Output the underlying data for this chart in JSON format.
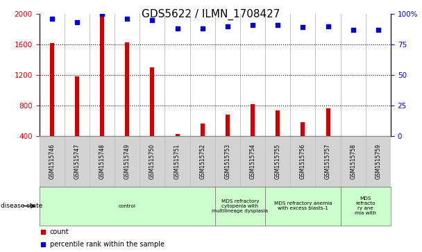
{
  "title": "GDS5622 / ILMN_1708427",
  "samples": [
    "GSM1515746",
    "GSM1515747",
    "GSM1515748",
    "GSM1515749",
    "GSM1515750",
    "GSM1515751",
    "GSM1515752",
    "GSM1515753",
    "GSM1515754",
    "GSM1515755",
    "GSM1515756",
    "GSM1515757",
    "GSM1515758",
    "GSM1515759"
  ],
  "counts": [
    1620,
    1180,
    2000,
    1630,
    1300,
    430,
    560,
    680,
    820,
    740,
    580,
    760,
    390,
    380
  ],
  "percentiles": [
    96,
    93,
    100,
    96,
    95,
    88,
    88,
    90,
    91,
    91,
    89,
    90,
    87,
    87
  ],
  "bar_color": "#cc0000",
  "dot_color": "#0000cc",
  "ylim_left": [
    400,
    2000
  ],
  "ylim_right": [
    0,
    100
  ],
  "yticks_left": [
    400,
    800,
    1200,
    1600,
    2000
  ],
  "yticks_right": [
    0,
    25,
    50,
    75,
    100
  ],
  "yticklabels_right": [
    "0",
    "25",
    "50",
    "75",
    "100%"
  ],
  "disease_groups": [
    {
      "label": "control",
      "start": 0,
      "end": 7,
      "color": "#ccffcc"
    },
    {
      "label": "MDS refractory\ncytopenia with\nmultilineage dysplasia",
      "start": 7,
      "end": 9,
      "color": "#ccffcc"
    },
    {
      "label": "MDS refractory anemia\nwith excess blasts-1",
      "start": 9,
      "end": 12,
      "color": "#ccffcc"
    },
    {
      "label": "MDS\nrefracto\nry ane\nmia with",
      "start": 12,
      "end": 14,
      "color": "#ccffcc"
    }
  ],
  "disease_state_label": "disease state",
  "legend_count_label": "count",
  "legend_percentile_label": "percentile rank within the sample",
  "bg_color": "#ffffff",
  "tick_label_color_left": "#cc0000",
  "tick_label_color_right": "#0000cc",
  "grid_color": "#000000",
  "sample_bg_color": "#d3d3d3",
  "title_fontsize": 11
}
